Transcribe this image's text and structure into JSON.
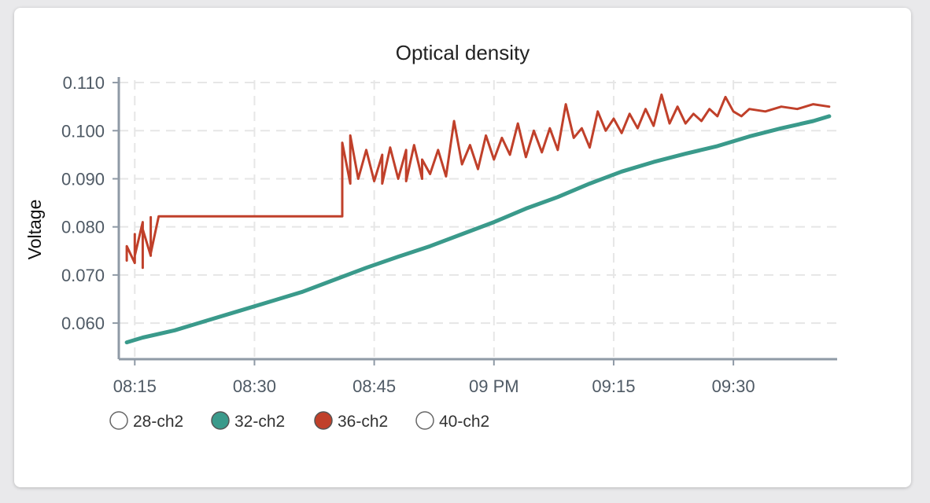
{
  "colors": {
    "page_bg": "#e9e9eb",
    "card_bg": "#ffffff",
    "axis": "#8f9aa6",
    "grid": "#e6e6e6",
    "series_32": "#3a9a8b",
    "series_36": "#c0402a"
  },
  "chart_data": {
    "type": "line",
    "title": "Optical density",
    "xlabel": "",
    "ylabel": "Voltage",
    "xlim": [
      "08:13",
      "09:43"
    ],
    "ylim": [
      0.0525,
      0.1105
    ],
    "grid": true,
    "legend_position": "bottom-left",
    "x_ticks": [
      {
        "label": "08:15",
        "value": "08:15"
      },
      {
        "label": "08:30",
        "value": "08:30"
      },
      {
        "label": "08:45",
        "value": "08:45"
      },
      {
        "label": "09 PM",
        "value": "09:00"
      },
      {
        "label": "09:15",
        "value": "09:15"
      },
      {
        "label": "09:30",
        "value": "09:30"
      }
    ],
    "y_ticks": [
      {
        "label": "0.110",
        "value": 0.11
      },
      {
        "label": "0.100",
        "value": 0.1
      },
      {
        "label": "0.090",
        "value": 0.09
      },
      {
        "label": "0.080",
        "value": 0.08
      },
      {
        "label": "0.070",
        "value": 0.07
      },
      {
        "label": "0.060",
        "value": 0.06
      }
    ],
    "legend": [
      {
        "name": "28-ch2",
        "active": false
      },
      {
        "name": "32-ch2",
        "active": true,
        "color": "#3a9a8b"
      },
      {
        "name": "36-ch2",
        "active": true,
        "color": "#c0402a"
      },
      {
        "name": "40-ch2",
        "active": false
      }
    ],
    "series": [
      {
        "name": "32-ch2",
        "color": "#3a9a8b",
        "x": [
          "08:14",
          "08:16",
          "08:20",
          "08:24",
          "08:28",
          "08:32",
          "08:36",
          "08:40",
          "08:44",
          "08:48",
          "08:52",
          "08:56",
          "09:00",
          "09:04",
          "09:08",
          "09:12",
          "09:16",
          "09:20",
          "09:24",
          "09:28",
          "09:32",
          "09:36",
          "09:40",
          "09:42"
        ],
        "y": [
          0.056,
          0.057,
          0.0585,
          0.0605,
          0.0625,
          0.0645,
          0.0665,
          0.069,
          0.0715,
          0.0738,
          0.076,
          0.0785,
          0.081,
          0.0838,
          0.0862,
          0.089,
          0.0915,
          0.0935,
          0.0952,
          0.0968,
          0.0988,
          0.1005,
          0.102,
          0.103
        ]
      },
      {
        "name": "36-ch2",
        "color": "#c0402a",
        "x": [
          "08:14",
          "08:14",
          "08:15",
          "08:15",
          "08:15",
          "08:16",
          "08:16",
          "08:16",
          "08:17",
          "08:17",
          "08:17",
          "08:18",
          "08:18",
          "08:41",
          "08:41",
          "08:42",
          "08:42",
          "08:43",
          "08:44",
          "08:45",
          "08:46",
          "08:46",
          "08:47",
          "08:48",
          "08:49",
          "08:49",
          "08:50",
          "08:51",
          "08:51",
          "08:52",
          "08:53",
          "08:54",
          "08:55",
          "08:56",
          "08:57",
          "08:58",
          "08:59",
          "09:00",
          "09:01",
          "09:02",
          "09:03",
          "09:04",
          "09:05",
          "09:06",
          "09:07",
          "09:08",
          "09:09",
          "09:10",
          "09:11",
          "09:12",
          "09:13",
          "09:14",
          "09:15",
          "09:16",
          "09:17",
          "09:18",
          "09:19",
          "09:20",
          "09:21",
          "09:22",
          "09:23",
          "09:24",
          "09:25",
          "09:26",
          "09:27",
          "09:28",
          "09:29",
          "09:30",
          "09:31",
          "09:32",
          "09:34",
          "09:36",
          "09:38",
          "09:40",
          "09:42"
        ],
        "y": [
          0.073,
          0.076,
          0.0725,
          0.0785,
          0.074,
          0.081,
          0.0715,
          0.0795,
          0.074,
          0.082,
          0.0745,
          0.0822,
          0.0822,
          0.0822,
          0.0975,
          0.089,
          0.099,
          0.09,
          0.096,
          0.0895,
          0.095,
          0.089,
          0.0965,
          0.09,
          0.096,
          0.0895,
          0.097,
          0.09,
          0.094,
          0.091,
          0.096,
          0.0905,
          0.102,
          0.093,
          0.097,
          0.092,
          0.099,
          0.094,
          0.0985,
          0.095,
          0.1015,
          0.0945,
          0.1,
          0.0955,
          0.1005,
          0.096,
          0.1055,
          0.0985,
          0.1005,
          0.0965,
          0.104,
          0.1,
          0.1025,
          0.0995,
          0.1035,
          0.1005,
          0.1045,
          0.101,
          0.1075,
          0.1015,
          0.105,
          0.1015,
          0.1035,
          0.102,
          0.1045,
          0.103,
          0.107,
          0.104,
          0.103,
          0.1045,
          0.104,
          0.105,
          0.1045,
          0.1055,
          0.105
        ]
      }
    ]
  }
}
